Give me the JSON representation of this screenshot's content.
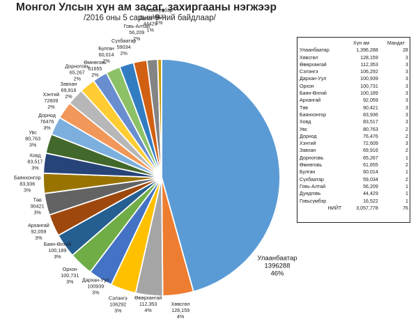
{
  "header": {
    "title": "Монгол Улсын хүн ам засаг, захиргааны нэгжээр",
    "subtitle": "/2016 оны 5 сарын 9-ний байдлаар/"
  },
  "chart_data": [
    {
      "type": "pie",
      "title": "Монгол Улсын хүн ам засаг, захиргааны нэгжээр",
      "subtitle": "/2016 оны 5 сарын 9-ний байдлаар/",
      "slices": [
        {
          "label": "Улаанбаатар",
          "value": 1396288,
          "pct": "46%",
          "color": "#5b9bd5"
        },
        {
          "label": "Ховсгол",
          "value": 128159,
          "pct": "4%",
          "color": "#ed7d31"
        },
        {
          "label": "Өвөрхангай",
          "value": 112353,
          "pct": "4%",
          "color": "#a5a5a5"
        },
        {
          "label": "Сэлэнгэ",
          "value": 106292,
          "pct": "3%",
          "color": "#ffc000"
        },
        {
          "label": "Дархан-Уул",
          "value": 100939,
          "pct": "3%",
          "color": "#4472c4"
        },
        {
          "label": "Орхон",
          "value": 100731,
          "pct": "3%",
          "color": "#70ad47"
        },
        {
          "label": "Баян-Өлгий",
          "value": 100189,
          "pct": "3%",
          "color": "#255e91"
        },
        {
          "label": "Архангай",
          "value": 92059,
          "pct": "3%",
          "color": "#9e480e"
        },
        {
          "label": "Төв",
          "value": 90421,
          "pct": "3%",
          "color": "#636363"
        },
        {
          "label": "Баянхонгор",
          "value": 83936,
          "pct": "3%",
          "color": "#997300"
        },
        {
          "label": "Ховд",
          "value": 83517,
          "pct": "3%",
          "color": "#264478"
        },
        {
          "label": "Увс",
          "value": 80763,
          "pct": "3%",
          "color": "#43682b"
        },
        {
          "label": "Дорнод",
          "value": 76476,
          "pct": "3%",
          "color": "#7cafdd"
        },
        {
          "label": "Хэнтий",
          "value": 72609,
          "pct": "2%",
          "color": "#f1975a"
        },
        {
          "label": "Завхан",
          "value": 69916,
          "pct": "2%",
          "color": "#b7b7b7"
        },
        {
          "label": "Дорноговь",
          "value": 65267,
          "pct": "2%",
          "color": "#ffcd33"
        },
        {
          "label": "Өмнөговь",
          "value": 61655,
          "pct": "2%",
          "color": "#698ed0"
        },
        {
          "label": "Булган",
          "value": 60014,
          "pct": "2%",
          "color": "#8cc168"
        },
        {
          "label": "Сүхбаатар",
          "value": 59034,
          "pct": "2%",
          "color": "#327dc2"
        },
        {
          "label": "Говь-Алтай",
          "value": 56209,
          "pct": "2%",
          "color": "#d26012"
        },
        {
          "label": "Дундговь",
          "value": 44429,
          "pct": "1%",
          "color": "#848484"
        },
        {
          "label": "Говьсүмбэр",
          "value": 16522,
          "pct": "1%",
          "color": "#cc9a00"
        }
      ],
      "labels": [
        {
          "name": "Улаанбаатар",
          "value": "1396288",
          "pct": "46%"
        },
        {
          "name": "Хөвсгөл",
          "value": "128,159",
          "pct": "4%"
        },
        {
          "name": "Өвөрхангай",
          "value": "112,353",
          "pct": "4%"
        },
        {
          "name": "Сэлэнгэ",
          "value": "106292",
          "pct": "3%"
        },
        {
          "name": "Дархан-Уул",
          "value": "100939",
          "pct": "3%"
        },
        {
          "name": "Орхон",
          "value": "100,731",
          "pct": "3%"
        },
        {
          "name": "Баян-Өлгий",
          "value": "100,189",
          "pct": "3%"
        },
        {
          "name": "Архангай",
          "value": "92,059",
          "pct": "3%"
        },
        {
          "name": "Төв",
          "value": "90421",
          "pct": "3%"
        },
        {
          "name": "Баянхонгор",
          "value": "83,936",
          "pct": "3%"
        },
        {
          "name": "Ховд",
          "value": "83,517",
          "pct": "3%"
        },
        {
          "name": "Увс",
          "value": "80,763",
          "pct": "3%"
        },
        {
          "name": "Дорнод",
          "value": "76476",
          "pct": "3%"
        },
        {
          "name": "Хэнтий",
          "value": "72609",
          "pct": "2%"
        },
        {
          "name": "Завхан",
          "value": "69,916",
          "pct": "2%"
        },
        {
          "name": "Дорноговь",
          "value": "65,267",
          "pct": "2%"
        },
        {
          "name": "Өмнөговь",
          "value": "61655",
          "pct": "2%"
        },
        {
          "name": "Булган",
          "value": "60,014",
          "pct": "2%"
        },
        {
          "name": "Сүхбаатар",
          "value": "59034",
          "pct": "2%"
        },
        {
          "name": "Говь-Алтай",
          "value": "56,209",
          "pct": "2%"
        },
        {
          "name": "Дундговь",
          "value": "44429",
          "pct": "1%"
        },
        {
          "name": "Говьсүмбэр",
          "value": "16522",
          "pct": "1%"
        }
      ]
    },
    {
      "type": "table",
      "columns": [
        "",
        "Хүн ам",
        "Мандат"
      ],
      "rows": [
        [
          "Улаанбаатар",
          "1,396,288",
          "28"
        ],
        [
          "Хөвсгөл",
          "128,159",
          "3"
        ],
        [
          "Өвөрхангай",
          "112,353",
          "3"
        ],
        [
          "Сэлэнгэ",
          "106,292",
          "3"
        ],
        [
          "Дархан-Уул",
          "100,939",
          "3"
        ],
        [
          "Орхон",
          "100,731",
          "3"
        ],
        [
          "Баян-Өлгий",
          "100,189",
          "3"
        ],
        [
          "Архангай",
          "92,059",
          "3"
        ],
        [
          "Төв",
          "90,421",
          "3"
        ],
        [
          "Баянхонгор",
          "83,936",
          "3"
        ],
        [
          "Ховд",
          "83,517",
          "3"
        ],
        [
          "Увс",
          "80,763",
          "2"
        ],
        [
          "Дорнод",
          "76,476",
          "2"
        ],
        [
          "Хэнтий",
          "72,609",
          "3"
        ],
        [
          "Завхан",
          "69,916",
          "2"
        ],
        [
          "Дорноговь",
          "65,267",
          "1"
        ],
        [
          "Өмнөговь",
          "61,655",
          "2"
        ],
        [
          "Булган",
          "60,014",
          "1"
        ],
        [
          "Сүхбаатар",
          "59,034",
          "2"
        ],
        [
          "Говь-Алтай",
          "56,209",
          "1"
        ],
        [
          "Дундговь",
          "44,429",
          "1"
        ],
        [
          "Говьсүмбэр",
          "16,522",
          "1"
        ]
      ],
      "total": [
        "НИЙТ",
        "3,057,778",
        "76"
      ]
    }
  ]
}
